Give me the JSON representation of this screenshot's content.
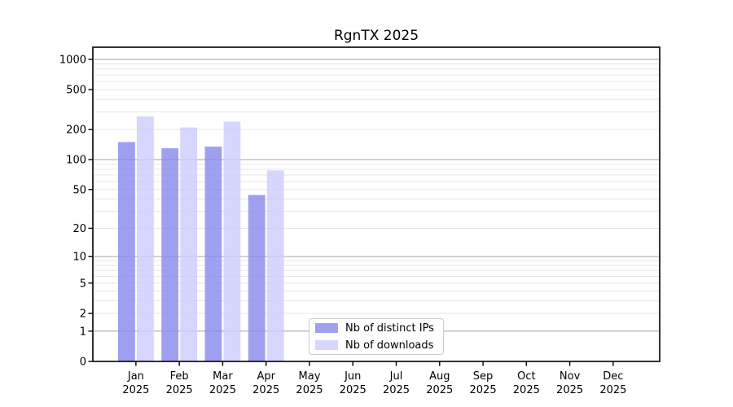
{
  "figure": {
    "background": "#ffffff"
  },
  "chart_data": {
    "type": "bar",
    "title": "RgnTX 2025",
    "yscale": "log1p",
    "grid": true,
    "legend_position": "lower center",
    "x_tick_top": [
      "Jan",
      "Feb",
      "Mar",
      "Apr",
      "May",
      "Jun",
      "Jul",
      "Aug",
      "Sep",
      "Oct",
      "Nov",
      "Dec"
    ],
    "x_tick_bottom": "2025",
    "categories": [
      "Jan 2025",
      "Feb 2025",
      "Mar 2025",
      "Apr 2025",
      "May 2025",
      "Jun 2025",
      "Jul 2025",
      "Aug 2025",
      "Sep 2025",
      "Oct 2025",
      "Nov 2025",
      "Dec 2025"
    ],
    "y_tick_values": [
      0,
      1,
      2,
      5,
      10,
      20,
      50,
      100,
      200,
      500,
      1000
    ],
    "y_tick_labels": [
      "0",
      "1",
      "2",
      "5",
      "10",
      "20",
      "50",
      "100",
      "200",
      "500",
      "1000"
    ],
    "ylim": [
      0,
      1320
    ],
    "xlabel": "",
    "ylabel": "",
    "series": [
      {
        "name": "Nb of distinct IPs",
        "color": "rgba(136,136,238,0.8)",
        "legend_color": "rgba(136,136,238,0.8)",
        "values": [
          150,
          130,
          135,
          44,
          0,
          0,
          0,
          0,
          0,
          0,
          0,
          0
        ]
      },
      {
        "name": "Nb of downloads",
        "color": "rgba(204,204,255,0.8)",
        "legend_color": "rgba(204,204,255,0.8)",
        "values": [
          270,
          210,
          240,
          78,
          0,
          0,
          0,
          0,
          0,
          0,
          0,
          0
        ]
      }
    ],
    "grid_minor_values": [
      2,
      3,
      4,
      5,
      6,
      7,
      8,
      9,
      20,
      30,
      40,
      50,
      60,
      70,
      80,
      90,
      200,
      300,
      400,
      500,
      600,
      700,
      800,
      900
    ],
    "grid_major_values": [
      1,
      10,
      100,
      1000
    ],
    "colors": {
      "major_grid": "#b3b3b3",
      "minor_grid": "#e7e7e7",
      "axis": "#000000",
      "text": "#000000"
    }
  }
}
